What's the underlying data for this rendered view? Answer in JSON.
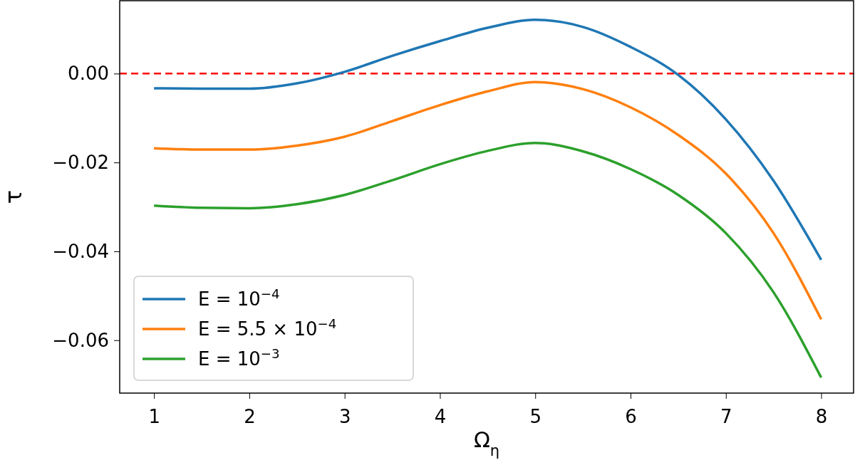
{
  "chart_data": {
    "type": "line",
    "xlabel": "Ω$_{η}$",
    "ylabel": "τ",
    "x": [
      1,
      1.5,
      2,
      2.5,
      3,
      3.5,
      4,
      4.5,
      5,
      5.5,
      6,
      6.5,
      7,
      7.5,
      8
    ],
    "series": [
      {
        "name": "E = 10$^{−4}$",
        "color": "#1f77b4",
        "values": [
          -0.0033,
          -0.0034,
          -0.0034,
          -0.0022,
          0.0004,
          0.004,
          0.0073,
          0.0103,
          0.0121,
          0.0105,
          0.006,
          -0.0003,
          -0.0103,
          -0.0241,
          -0.0419
        ]
      },
      {
        "name": "E = 5.5 × 10$^{−4}$",
        "color": "#ff7f0e",
        "values": [
          -0.0168,
          -0.0171,
          -0.0171,
          -0.0162,
          -0.0142,
          -0.0107,
          -0.0071,
          -0.004,
          -0.0019,
          -0.0035,
          -0.0076,
          -0.0138,
          -0.0225,
          -0.0359,
          -0.0553
        ]
      },
      {
        "name": "E = 10$^{−3}$",
        "color": "#2ca02c",
        "values": [
          -0.0297,
          -0.0302,
          -0.0303,
          -0.0294,
          -0.0273,
          -0.024,
          -0.0204,
          -0.0174,
          -0.0156,
          -0.0175,
          -0.0215,
          -0.0273,
          -0.0359,
          -0.0492,
          -0.0684
        ]
      }
    ],
    "xlim": [
      0.64,
      8.34
    ],
    "xticks": [
      1,
      2,
      3,
      4,
      5,
      6,
      7,
      8
    ],
    "ylim": [
      -0.0719,
      0.0164
    ],
    "yticks": [
      {
        "value": 0,
        "label": "0.00"
      },
      {
        "value": -0.02,
        "label": "−0.02"
      },
      {
        "value": -0.04,
        "label": "−0.04"
      },
      {
        "value": -0.06,
        "label": "−0.06"
      }
    ],
    "ref_lines": [
      {
        "axis": "y",
        "value": 0,
        "color": "#ff0000",
        "line_style": "dashed"
      }
    ],
    "legend": "bottom left",
    "grid": false,
    "marker": "none",
    "line_style": "solid"
  }
}
